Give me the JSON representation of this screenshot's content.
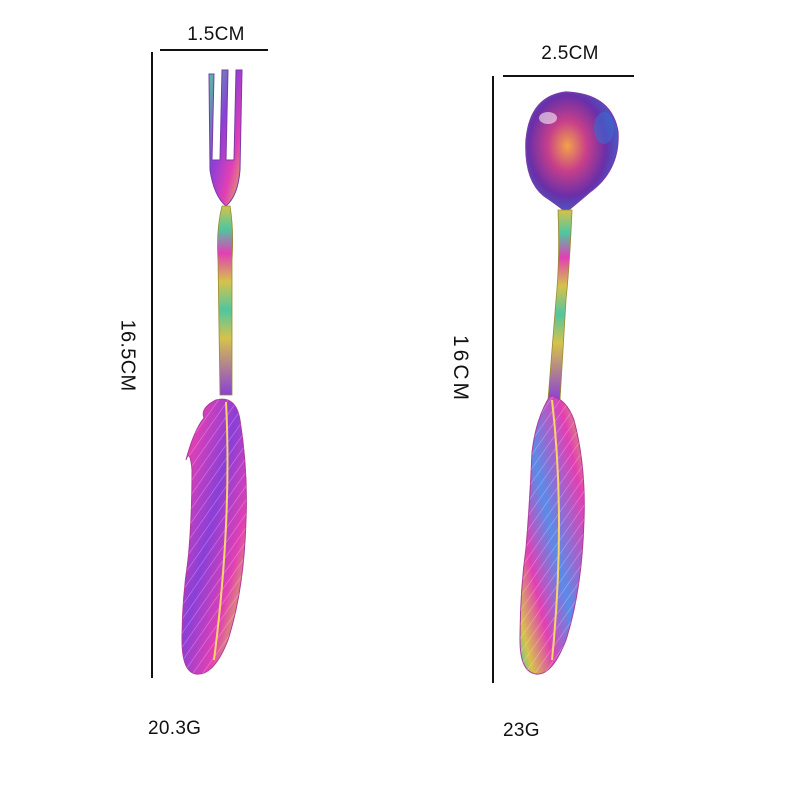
{
  "fork": {
    "width_label": "1.5CM",
    "length_label": "16.5CM",
    "weight_label": "20.3G"
  },
  "spoon": {
    "width_label": "2.5CM",
    "length_label": "16CM",
    "weight_label": "23G"
  },
  "colors": {
    "background": "#ffffff",
    "dimension_line": "#111111",
    "iridescent_pink": "#e23fb4",
    "iridescent_purple": "#8a3fd8",
    "iridescent_gold": "#d6c24a",
    "iridescent_green": "#4fc7a0",
    "iridescent_blue": "#5a8be8"
  }
}
